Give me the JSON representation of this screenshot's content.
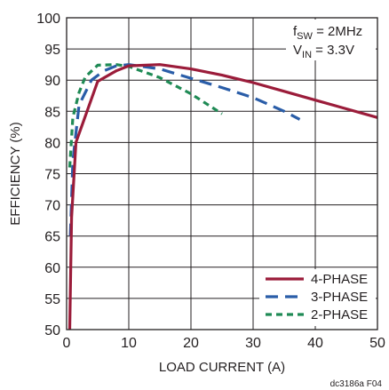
{
  "chart_data": {
    "type": "line",
    "title": "",
    "xlabel": "LOAD CURRENT (A)",
    "ylabel": "EFFICIENCY (%)",
    "xlim": [
      0,
      50
    ],
    "ylim": [
      50,
      100
    ],
    "xticks": [
      0,
      10,
      20,
      30,
      40,
      50
    ],
    "yticks": [
      50,
      55,
      60,
      65,
      70,
      75,
      80,
      85,
      90,
      95,
      100
    ],
    "grid": true,
    "annotations": [
      {
        "base": "f",
        "sub": "SW",
        "rest": " = 2MHz"
      },
      {
        "base": "V",
        "sub": "IN",
        "rest": " = 3.3V"
      }
    ],
    "legend_position": "bottom-right",
    "series": [
      {
        "name": "4-PHASE",
        "color": "#9b1c3a",
        "dash": "solid",
        "points": [
          [
            0.5,
            50
          ],
          [
            0.8,
            68
          ],
          [
            1.5,
            80
          ],
          [
            5,
            89.8
          ],
          [
            8,
            91.5
          ],
          [
            10,
            92.3
          ],
          [
            15,
            92.5
          ],
          [
            20,
            91.8
          ],
          [
            25,
            90.8
          ],
          [
            30,
            89.6
          ],
          [
            35,
            88.2
          ],
          [
            40,
            86.8
          ],
          [
            45,
            85.4
          ],
          [
            50,
            84
          ]
        ]
      },
      {
        "name": "3-PHASE",
        "color": "#2a5da8",
        "dash": "long",
        "points": [
          [
            0.6,
            65
          ],
          [
            1,
            77
          ],
          [
            2,
            86
          ],
          [
            4,
            90
          ],
          [
            6,
            91.5
          ],
          [
            8,
            92.3
          ],
          [
            10,
            92.5
          ],
          [
            15,
            91.8
          ],
          [
            20,
            90.3
          ],
          [
            25,
            88.8
          ],
          [
            30,
            87.2
          ],
          [
            35,
            85.0
          ],
          [
            37.5,
            83.7
          ]
        ]
      },
      {
        "name": "2-PHASE",
        "color": "#1f8a55",
        "dash": "short",
        "points": [
          [
            0.5,
            76
          ],
          [
            1,
            84
          ],
          [
            2,
            88
          ],
          [
            3,
            90.5
          ],
          [
            5,
            92.4
          ],
          [
            8,
            92.5
          ],
          [
            10,
            92.2
          ],
          [
            15,
            90.4
          ],
          [
            20,
            87.8
          ],
          [
            25,
            84.6
          ]
        ]
      }
    ]
  },
  "footer_code": "dc3186a F04"
}
